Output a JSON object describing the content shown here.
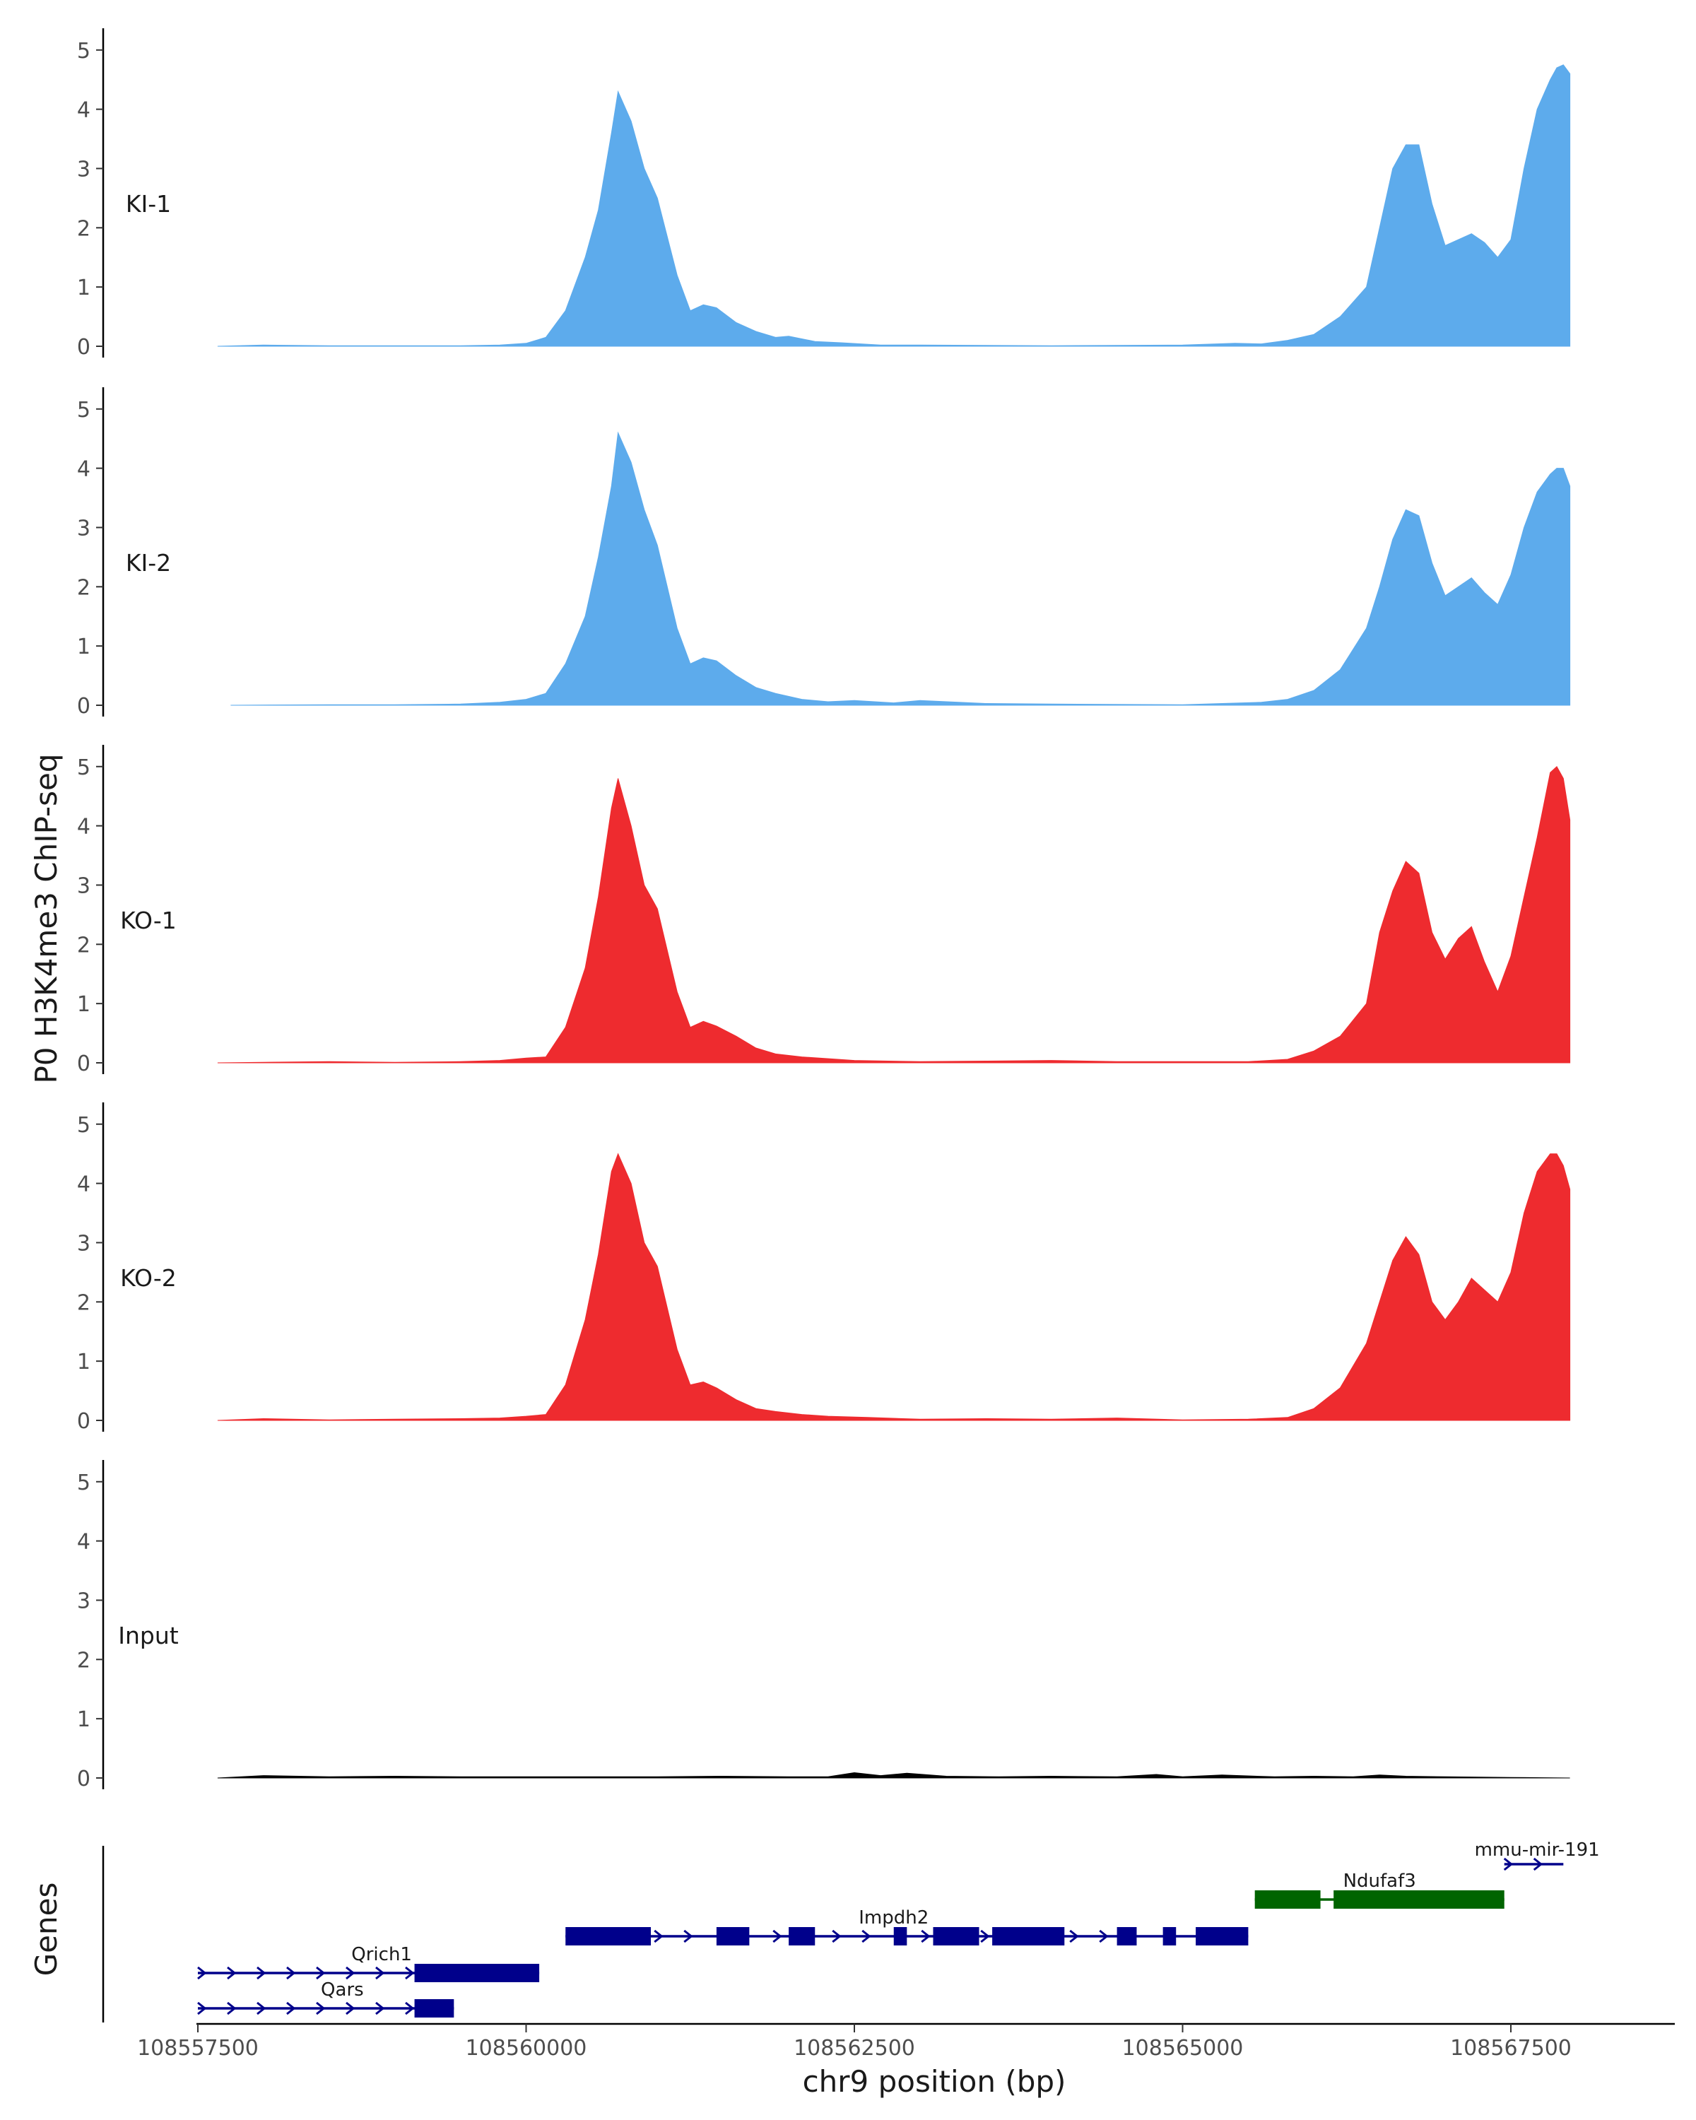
{
  "chart_data": {
    "type": "area",
    "ylabel": "P0 H3K4me3 ChIP-seq",
    "xlabel": "chr9 position (bp)",
    "genes_label": "Genes",
    "ylim": [
      0,
      5.2
    ],
    "yticks": [
      "0",
      "1",
      "2",
      "3",
      "4",
      "5"
    ],
    "xlim": [
      108557000,
      108568500
    ],
    "xticks": [
      {
        "value": 108557500,
        "label": "108557500"
      },
      {
        "value": 108560000,
        "label": "108560000"
      },
      {
        "value": 108562500,
        "label": "108562500"
      },
      {
        "value": 108565000,
        "label": "108565000"
      },
      {
        "value": 108567500,
        "label": "108567500"
      }
    ],
    "grid": false,
    "colors": {
      "KI": "#5dabec",
      "KO": "#ee2b2f",
      "Input": "#000000",
      "gene_blue": "#00008b",
      "gene_green": "#006400"
    },
    "tracks": [
      {
        "label": "KI-1",
        "color": "#5dabec",
        "x": [
          108557650,
          108558000,
          108558500,
          108559000,
          108559500,
          108559800,
          108560000,
          108560150,
          108560300,
          108560450,
          108560550,
          108560650,
          108560700,
          108560800,
          108560900,
          108561000,
          108561150,
          108561250,
          108561350,
          108561450,
          108561600,
          108561750,
          108561900,
          108562000,
          108562200,
          108562400,
          108562700,
          108563000,
          108564000,
          108565000,
          108565400,
          108565600,
          108565800,
          108566000,
          108566200,
          108566400,
          108566500,
          108566600,
          108566700,
          108566800,
          108566900,
          108567000,
          108567100,
          108567200,
          108567300,
          108567400,
          108567500,
          108567600,
          108567700,
          108567800,
          108567850,
          108567900,
          108567950
        ],
        "y": [
          0,
          0.02,
          0.01,
          0.01,
          0.01,
          0.02,
          0.05,
          0.15,
          0.6,
          1.5,
          2.3,
          3.6,
          4.3,
          3.8,
          3.0,
          2.5,
          1.2,
          0.6,
          0.7,
          0.65,
          0.4,
          0.25,
          0.15,
          0.17,
          0.08,
          0.06,
          0.02,
          0.02,
          0.01,
          0.02,
          0.05,
          0.04,
          0.1,
          0.2,
          0.5,
          1.0,
          2.0,
          3.0,
          3.4,
          3.4,
          2.4,
          1.7,
          1.8,
          1.9,
          1.75,
          1.5,
          1.8,
          3.0,
          4.0,
          4.5,
          4.7,
          4.75,
          4.6
        ]
      },
      {
        "label": "KI-2",
        "color": "#5dabec",
        "x": [
          108557750,
          108558500,
          108559000,
          108559500,
          108559800,
          108560000,
          108560150,
          108560300,
          108560450,
          108560550,
          108560650,
          108560700,
          108560800,
          108560900,
          108561000,
          108561150,
          108561250,
          108561350,
          108561450,
          108561600,
          108561750,
          108561900,
          108562100,
          108562300,
          108562500,
          108562800,
          108563000,
          108563500,
          108564000,
          108565000,
          108565300,
          108565600,
          108565800,
          108566000,
          108566200,
          108566400,
          108566500,
          108566600,
          108566700,
          108566800,
          108566900,
          108567000,
          108567100,
          108567200,
          108567300,
          108567400,
          108567500,
          108567600,
          108567700,
          108567800,
          108567850,
          108567900,
          108567950
        ],
        "y": [
          0,
          0.01,
          0.01,
          0.02,
          0.05,
          0.1,
          0.2,
          0.7,
          1.5,
          2.5,
          3.7,
          4.6,
          4.1,
          3.3,
          2.7,
          1.3,
          0.7,
          0.8,
          0.75,
          0.5,
          0.3,
          0.2,
          0.1,
          0.06,
          0.08,
          0.04,
          0.08,
          0.03,
          0.02,
          0.01,
          0.03,
          0.05,
          0.1,
          0.25,
          0.6,
          1.3,
          2.0,
          2.8,
          3.3,
          3.2,
          2.4,
          1.85,
          2.0,
          2.15,
          1.9,
          1.7,
          2.2,
          3.0,
          3.6,
          3.9,
          4.0,
          4.0,
          3.7
        ]
      },
      {
        "label": "KO-1",
        "color": "#ee2b2f",
        "x": [
          108557650,
          108558000,
          108558500,
          108559000,
          108559500,
          108559800,
          108560000,
          108560150,
          108560300,
          108560450,
          108560550,
          108560650,
          108560700,
          108560800,
          108560900,
          108561000,
          108561150,
          108561250,
          108561350,
          108561450,
          108561600,
          108561750,
          108561900,
          108562100,
          108562500,
          108563000,
          108563500,
          108564000,
          108564500,
          108565000,
          108565500,
          108565800,
          108566000,
          108566200,
          108566400,
          108566500,
          108566600,
          108566700,
          108566800,
          108566900,
          108567000,
          108567100,
          108567200,
          108567300,
          108567400,
          108567500,
          108567600,
          108567700,
          108567800,
          108567850,
          108567900,
          108567950
        ],
        "y": [
          0,
          0.01,
          0.02,
          0.01,
          0.02,
          0.04,
          0.08,
          0.1,
          0.6,
          1.6,
          2.8,
          4.3,
          4.8,
          4.0,
          3.0,
          2.6,
          1.2,
          0.6,
          0.7,
          0.62,
          0.45,
          0.25,
          0.15,
          0.1,
          0.04,
          0.02,
          0.03,
          0.04,
          0.02,
          0.02,
          0.02,
          0.06,
          0.2,
          0.45,
          1.0,
          2.2,
          2.9,
          3.4,
          3.2,
          2.2,
          1.75,
          2.1,
          2.3,
          1.7,
          1.2,
          1.8,
          2.8,
          3.8,
          4.9,
          5.0,
          4.8,
          4.1
        ]
      },
      {
        "label": "KO-2",
        "color": "#ee2b2f",
        "x": [
          108557650,
          108558000,
          108558500,
          108559000,
          108559500,
          108559800,
          108560000,
          108560150,
          108560300,
          108560450,
          108560550,
          108560650,
          108560700,
          108560800,
          108560900,
          108561000,
          108561150,
          108561250,
          108561350,
          108561450,
          108561600,
          108561750,
          108561900,
          108562100,
          108562300,
          108562600,
          108563000,
          108563500,
          108564000,
          108564500,
          108565000,
          108565500,
          108565800,
          108566000,
          108566200,
          108566400,
          108566500,
          108566600,
          108566700,
          108566800,
          108566900,
          108567000,
          108567100,
          108567200,
          108567300,
          108567400,
          108567500,
          108567600,
          108567700,
          108567800,
          108567850,
          108567900,
          108567950
        ],
        "y": [
          0,
          0.03,
          0.01,
          0.02,
          0.03,
          0.04,
          0.07,
          0.1,
          0.6,
          1.7,
          2.8,
          4.2,
          4.5,
          4.0,
          3.0,
          2.6,
          1.2,
          0.6,
          0.65,
          0.55,
          0.35,
          0.2,
          0.15,
          0.1,
          0.07,
          0.05,
          0.02,
          0.03,
          0.02,
          0.04,
          0.01,
          0.02,
          0.05,
          0.2,
          0.55,
          1.3,
          2.0,
          2.7,
          3.1,
          2.8,
          2.0,
          1.7,
          2.0,
          2.4,
          2.2,
          2.0,
          2.5,
          3.5,
          4.2,
          4.5,
          4.5,
          4.3,
          3.9
        ]
      },
      {
        "label": "Input",
        "color": "#000000",
        "x": [
          108557650,
          108558000,
          108558500,
          108559000,
          108559500,
          108560000,
          108560500,
          108561000,
          108561500,
          108562000,
          108562300,
          108562500,
          108562700,
          108562900,
          108563200,
          108563600,
          108564000,
          108564500,
          108564800,
          108565000,
          108565300,
          108565700,
          108566000,
          108566300,
          108566500,
          108566700,
          108567000,
          108567500,
          108567950
        ],
        "y": [
          0,
          0.04,
          0.02,
          0.03,
          0.02,
          0.02,
          0.02,
          0.02,
          0.03,
          0.02,
          0.02,
          0.09,
          0.04,
          0.08,
          0.03,
          0.02,
          0.03,
          0.02,
          0.06,
          0.02,
          0.05,
          0.02,
          0.03,
          0.02,
          0.05,
          0.03,
          0.02,
          0.01,
          0
        ]
      }
    ],
    "genes": [
      {
        "name": "mmu-mir-191",
        "color": "#00008b",
        "strand": "+",
        "line": [
          108567450,
          108567900
        ],
        "blocks": [],
        "label_x": 108567700
      },
      {
        "name": "Ndufaf3",
        "color": "#006400",
        "strand": "+",
        "line": [
          108565550,
          108567450
        ],
        "blocks": [
          [
            108565550,
            108566050
          ],
          [
            108566150,
            108567450
          ]
        ],
        "label_x": 108566500
      },
      {
        "name": "Impdh2",
        "color": "#00008b",
        "strand": "+",
        "line": [
          108560300,
          108565500
        ],
        "blocks": [
          [
            108560300,
            108560950
          ],
          [
            108561450,
            108561700
          ],
          [
            108562000,
            108562200
          ],
          [
            108562800,
            108562900
          ],
          [
            108563100,
            108563450
          ],
          [
            108563550,
            108564100
          ],
          [
            108564500,
            108564650
          ],
          [
            108564850,
            108564950
          ],
          [
            108565100,
            108565500
          ]
        ],
        "label_x": 108562800
      },
      {
        "name": "Qrich1",
        "color": "#00008b",
        "strand": "+",
        "line": [
          108557500,
          108560100
        ],
        "blocks": [
          [
            108559150,
            108560100
          ]
        ],
        "label_x": 108558900
      },
      {
        "name": "Qars",
        "color": "#00008b",
        "strand": "+",
        "line": [
          108557500,
          108559450
        ],
        "blocks": [
          [
            108559150,
            108559450
          ]
        ],
        "label_x": 108558600
      }
    ]
  }
}
